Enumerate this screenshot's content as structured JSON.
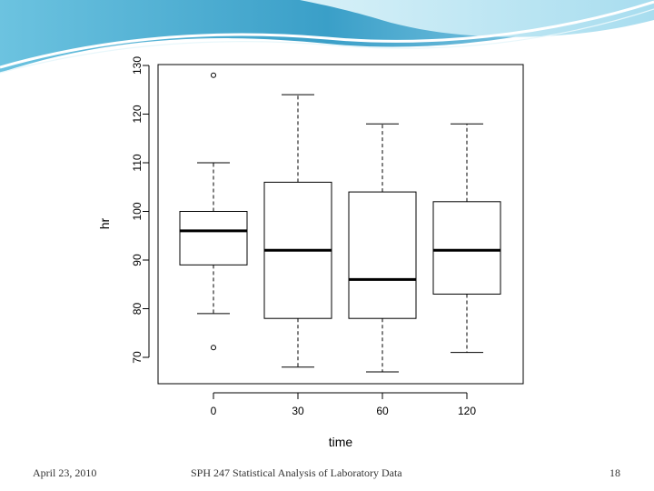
{
  "slide": {
    "footer_date": "April 23, 2010",
    "footer_title": "SPH 247 Statistical Analysis of Laboratory Data",
    "page_number": "18",
    "theme_colors": {
      "wave_dark": "#3a9fc8",
      "wave_light": "#bfe6f2",
      "wave_white": "#ffffff"
    }
  },
  "chart_data": {
    "type": "box",
    "title": "",
    "xlabel": "time",
    "ylabel": "hr",
    "categories": [
      "0",
      "30",
      "60",
      "120"
    ],
    "y_ticks": [
      70,
      80,
      90,
      100,
      110,
      120,
      130
    ],
    "ylim": [
      65,
      131
    ],
    "grid": false,
    "boxes": [
      {
        "category": "0",
        "whisker_low": 79,
        "q1": 89,
        "median": 96,
        "q3": 100,
        "whisker_high": 110,
        "outliers": [
          72,
          128
        ]
      },
      {
        "category": "30",
        "whisker_low": 68,
        "q1": 78,
        "median": 92,
        "q3": 106,
        "whisker_high": 124,
        "outliers": []
      },
      {
        "category": "60",
        "whisker_low": 67,
        "q1": 78,
        "median": 86,
        "q3": 104,
        "whisker_high": 118,
        "outliers": []
      },
      {
        "category": "120",
        "whisker_low": 71,
        "q1": 83,
        "median": 92,
        "q3": 102,
        "whisker_high": 118,
        "outliers": []
      }
    ]
  }
}
